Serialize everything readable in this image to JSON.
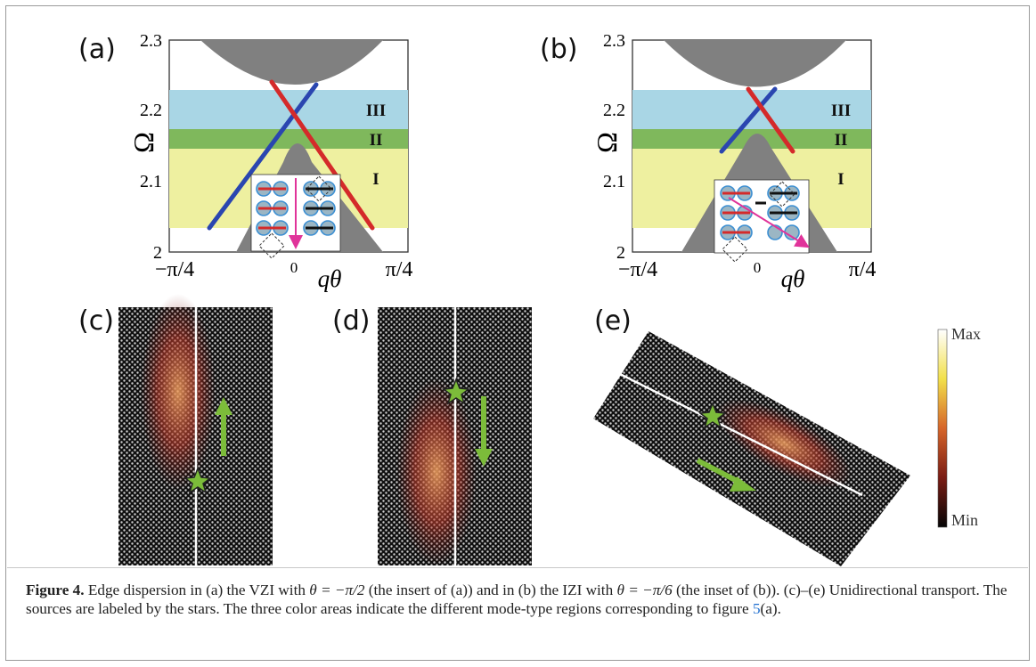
{
  "panels": {
    "a": {
      "label": "(a)",
      "y_axis_label": "Ω",
      "y_ticks": [
        "2.3",
        "2.2",
        "2.1",
        "2"
      ],
      "x_ticks": [
        "−π/4",
        "0",
        "π/4"
      ],
      "x_axis_label": "qθ",
      "regions": [
        "III",
        "II",
        "I"
      ]
    },
    "b": {
      "label": "(b)",
      "y_axis_label": "Ω",
      "y_ticks": [
        "2.3",
        "2.2",
        "2.1",
        "2"
      ],
      "x_ticks": [
        "−π/4",
        "0",
        "π/4"
      ],
      "x_axis_label": "qθ",
      "regions": [
        "III",
        "II",
        "I"
      ]
    },
    "c": {
      "label": "(c)"
    },
    "d": {
      "label": "(d)"
    },
    "e": {
      "label": "(e)"
    }
  },
  "colorbar": {
    "max_label": "Max",
    "min_label": "Min"
  },
  "caption": {
    "figure_label": "Figure 4.",
    "t1": "  Edge dispersion in (a) the VZI with ",
    "eq1": "θ = −π/2",
    "t2": " (the insert of (a)) and in (b) the IZI with ",
    "eq2": "θ = −π/6",
    "t3": " (the inset of (b)). (c)–(e) Unidirectional transport. The sources are labeled by the stars. The three color areas indicate the different mode-type regions corresponding to figure ",
    "ref": "5",
    "t4": "(a)."
  },
  "colors": {
    "region_III": "#a9d6e5",
    "region_II": "#7fb85c",
    "region_I": "#eef0a0",
    "bulk": "#808080",
    "edge_red": "#d42a2a",
    "edge_blue": "#2a46b0",
    "arrow": "#e0339a",
    "green": "#7cbc3a"
  }
}
